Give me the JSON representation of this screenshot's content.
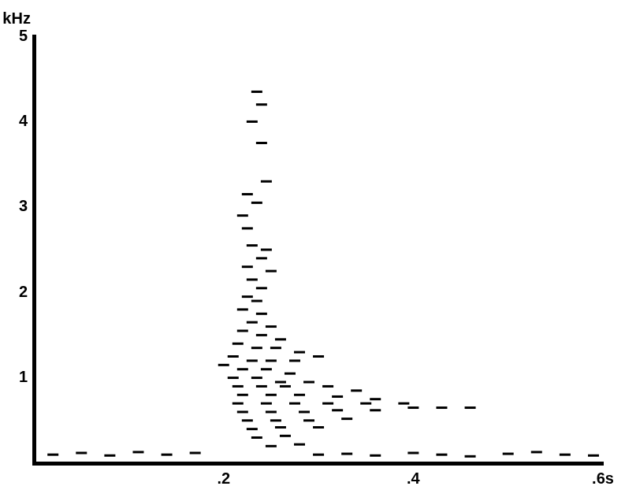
{
  "chart_data": {
    "type": "scatter",
    "y_label": "kHz",
    "color": "#000000",
    "marker": "line",
    "xlim": [
      0,
      0.6
    ],
    "ylim": [
      0,
      5
    ],
    "xticks": [
      {
        "value": 0.2,
        "label": ".2"
      },
      {
        "value": 0.4,
        "label": ".4"
      },
      {
        "value": 0.6,
        "label": ".6s"
      }
    ],
    "yticks": [
      1,
      2,
      3,
      4,
      5
    ],
    "grid": false,
    "x": [
      0.02,
      0.05,
      0.08,
      0.11,
      0.14,
      0.17,
      0.3,
      0.33,
      0.36,
      0.4,
      0.43,
      0.46,
      0.5,
      0.53,
      0.56,
      0.59,
      0.235,
      0.24,
      0.23,
      0.24,
      0.245,
      0.225,
      0.235,
      0.22,
      0.225,
      0.23,
      0.245,
      0.24,
      0.225,
      0.25,
      0.23,
      0.24,
      0.225,
      0.235,
      0.22,
      0.24,
      0.23,
      0.25,
      0.22,
      0.24,
      0.26,
      0.215,
      0.235,
      0.255,
      0.28,
      0.21,
      0.23,
      0.25,
      0.275,
      0.3,
      0.2,
      0.22,
      0.245,
      0.27,
      0.21,
      0.235,
      0.26,
      0.29,
      0.215,
      0.24,
      0.265,
      0.31,
      0.34,
      0.22,
      0.25,
      0.28,
      0.32,
      0.36,
      0.215,
      0.245,
      0.275,
      0.31,
      0.35,
      0.39,
      0.22,
      0.25,
      0.285,
      0.32,
      0.36,
      0.4,
      0.43,
      0.46,
      0.225,
      0.255,
      0.29,
      0.33,
      0.23,
      0.26,
      0.3,
      0.235,
      0.265,
      0.25,
      0.28
    ],
    "values": [
      0.1,
      0.12,
      0.09,
      0.13,
      0.1,
      0.12,
      0.1,
      0.11,
      0.09,
      0.12,
      0.1,
      0.08,
      0.11,
      0.13,
      0.1,
      0.09,
      4.35,
      4.2,
      4.0,
      3.75,
      3.3,
      3.15,
      3.05,
      2.9,
      2.75,
      2.55,
      2.5,
      2.4,
      2.3,
      2.25,
      2.15,
      2.05,
      1.95,
      1.9,
      1.8,
      1.75,
      1.65,
      1.6,
      1.55,
      1.5,
      1.45,
      1.4,
      1.35,
      1.35,
      1.3,
      1.25,
      1.2,
      1.2,
      1.2,
      1.25,
      1.15,
      1.1,
      1.1,
      1.05,
      1.0,
      1.0,
      0.95,
      0.95,
      0.9,
      0.9,
      0.9,
      0.9,
      0.85,
      0.8,
      0.8,
      0.8,
      0.78,
      0.75,
      0.7,
      0.7,
      0.7,
      0.7,
      0.7,
      0.7,
      0.6,
      0.6,
      0.6,
      0.62,
      0.62,
      0.65,
      0.65,
      0.65,
      0.5,
      0.5,
      0.5,
      0.52,
      0.4,
      0.42,
      0.42,
      0.3,
      0.32,
      0.2,
      0.22
    ]
  }
}
